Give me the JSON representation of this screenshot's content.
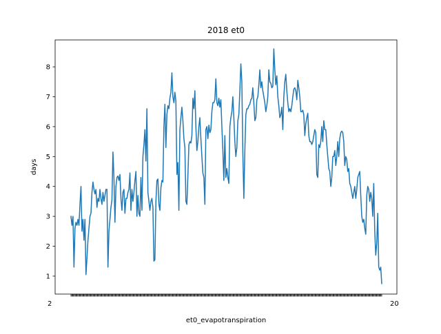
{
  "chart_data": {
    "type": "line",
    "title": "2018 et0",
    "xlabel": "et0_evapotranspiration",
    "ylabel": "days",
    "xlim": [
      0,
      364
    ],
    "ylim": [
      0.4,
      8.9
    ],
    "yticks": [
      1,
      2,
      3,
      4,
      5,
      6,
      7,
      8
    ],
    "grid": false,
    "color": "#1f77b4",
    "x_tick_count": 365,
    "x_tick_first_label": "2",
    "x_tick_last_label": "20",
    "series": [
      {
        "values": [
          3.0,
          2.7,
          3.0,
          1.3,
          2.6,
          2.8,
          2.7,
          2.9,
          2.7,
          3.4,
          4.0,
          2.5,
          2.9,
          2.2,
          2.9,
          1.05,
          1.6,
          2.2,
          2.6,
          3.0,
          3.1,
          3.8,
          4.15,
          3.9,
          3.75,
          3.9,
          3.3,
          3.6,
          3.5,
          3.9,
          3.6,
          3.4,
          3.8,
          3.5,
          3.7,
          3.9,
          3.9,
          1.3,
          2.5,
          2.9,
          3.3,
          3.55,
          5.15,
          4.3,
          2.8,
          4.0,
          4.3,
          4.35,
          4.2,
          4.4,
          3.6,
          3.2,
          3.8,
          3.9,
          3.1,
          3.6,
          3.6,
          3.8,
          3.9,
          4.45,
          3.2,
          3.9,
          3.5,
          3.8,
          4.2,
          4.5,
          3.0,
          3.7,
          3.1,
          3.0,
          4.3,
          3.2,
          5.0,
          5.4,
          5.9,
          4.85,
          6.6,
          3.8,
          3.5,
          3.2,
          3.5,
          3.6,
          3.3,
          1.5,
          1.55,
          3.5,
          4.2,
          4.25,
          3.4,
          3.2,
          3.95,
          4.2,
          4.15,
          6.0,
          6.75,
          5.3,
          6.4,
          6.7,
          6.6,
          6.95,
          7.15,
          7.8,
          7.0,
          6.8,
          7.15,
          6.85,
          4.4,
          4.8,
          3.2,
          5.9,
          6.3,
          6.65,
          6.2,
          5.6,
          5.3,
          3.5,
          3.4,
          4.35,
          5.4,
          5.5,
          5.45,
          5.7,
          6.95,
          6.6,
          7.2,
          6.0,
          5.2,
          5.5,
          6.0,
          6.3,
          5.6,
          5.0,
          4.45,
          4.3,
          3.4,
          5.9,
          6.0,
          5.6,
          6.05,
          5.8,
          5.9,
          6.5,
          6.8,
          6.8,
          6.9,
          7.6,
          6.8,
          6.7,
          6.95,
          6.65,
          6.9,
          6.0,
          5.2,
          4.2,
          5.7,
          4.3,
          4.6,
          4.3,
          4.1,
          6.0,
          6.3,
          6.5,
          7.0,
          6.3,
          5.5,
          5.0,
          5.3,
          6.2,
          6.4,
          7.2,
          8.1,
          7.5,
          5.1,
          3.6,
          5.2,
          6.4,
          6.6,
          6.6,
          6.7,
          6.75,
          6.9,
          6.95,
          7.3,
          6.8,
          6.2,
          6.3,
          6.9,
          7.0,
          7.4,
          7.9,
          7.3,
          7.5,
          7.2,
          7.0,
          6.8,
          6.5,
          6.7,
          7.0,
          7.9,
          7.5,
          7.45,
          7.3,
          7.35,
          8.6,
          7.9,
          7.4,
          7.7,
          7.0,
          6.7,
          6.3,
          6.4,
          6.65,
          5.9,
          7.0,
          7.5,
          7.75,
          7.2,
          6.8,
          6.5,
          6.6,
          6.5,
          6.7,
          7.0,
          7.25,
          7.3,
          7.2,
          6.9,
          7.55,
          7.3,
          7.0,
          6.5,
          6.5,
          6.55,
          6.4,
          5.7,
          6.1,
          6.3,
          6.45,
          5.7,
          5.5,
          5.5,
          5.4,
          5.5,
          5.7,
          5.9,
          5.8,
          4.4,
          4.3,
          5.4,
          5.3,
          5.5,
          6.0,
          5.5,
          6.2,
          5.9,
          5.9,
          5.4,
          5.0,
          4.6,
          4.5,
          4.0,
          4.3,
          5.0,
          5.0,
          5.2,
          4.7,
          5.0,
          5.5,
          5.0,
          5.6,
          5.8,
          5.85,
          5.8,
          5.5,
          4.7,
          5.0,
          4.9,
          4.5,
          4.6,
          4.1,
          4.0,
          3.8,
          3.6,
          3.8,
          4.0,
          3.6,
          3.9,
          4.3,
          4.4,
          4.5,
          3.7,
          3.0,
          2.8,
          2.9,
          2.6,
          2.4,
          3.7,
          4.0,
          3.9,
          3.5,
          3.8,
          3.6,
          3.0,
          4.1,
          2.5,
          1.7,
          2.1,
          3.1,
          1.3,
          1.2,
          1.3,
          0.75
        ]
      }
    ]
  }
}
